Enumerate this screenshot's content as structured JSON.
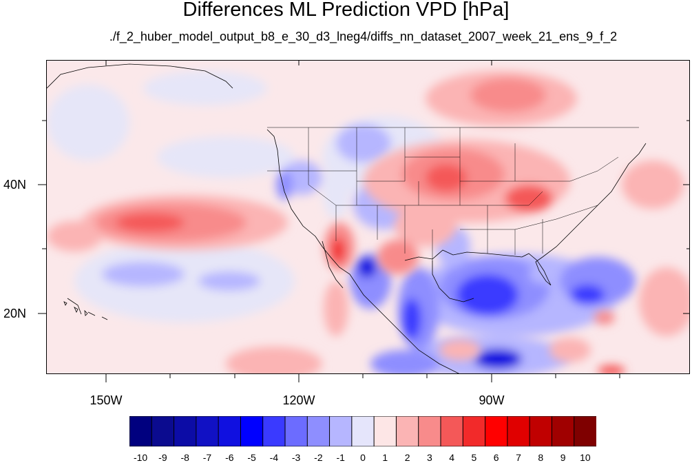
{
  "title": "Differences ML Prediction VPD [hPa]",
  "subtitle": "./f_2_huber_model_output_b8_e_30_d3_lneg4/diffs_nn_dataset_2007_week_21_ens_9_f_2",
  "map": {
    "projection": "cylindrical equidistant",
    "extent": {
      "lon_min": -159.4,
      "lon_max": -59.3,
      "lat_min": 10.5,
      "lat_max": 59.5
    },
    "lat_labels": [
      "40N",
      "20N"
    ],
    "lon_labels": [
      "150W",
      "120W",
      "90W"
    ],
    "boundaries": [
      "coastlines",
      "US state borders"
    ]
  },
  "colorbar": {
    "labels": [
      "-10",
      "-9",
      "-8",
      "-7",
      "-6",
      "-5",
      "-4",
      "-3",
      "-2",
      "-1",
      "0",
      "1",
      "2",
      "3",
      "4",
      "5",
      "6",
      "7",
      "8",
      "9",
      "10"
    ],
    "colors": [
      "#00007f",
      "#0b0b8f",
      "#0c0ca6",
      "#1111c4",
      "#1010e0",
      "#0000ff",
      "#3a3aff",
      "#6c6cff",
      "#8e8eff",
      "#b6b6ff",
      "#e5e5fb",
      "#fde6e6",
      "#fbb4b4",
      "#f88b8b",
      "#f45858",
      "#f22a2a",
      "#ff0000",
      "#e00000",
      "#c00000",
      "#a00000",
      "#7f0000"
    ]
  }
}
